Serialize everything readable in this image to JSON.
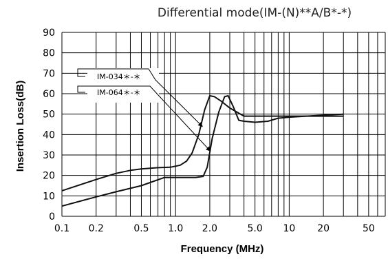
{
  "chart_data": {
    "type": "line",
    "title": "Differential mode(IM-(N)**A/B*-*)",
    "xlabel": "Frequency (MHz)",
    "ylabel": "Insertion Loss(dB)",
    "x_scale": "log",
    "xlim": [
      0.1,
      70
    ],
    "ylim": [
      0,
      90
    ],
    "grid": true,
    "x_ticks": [
      0.1,
      0.2,
      0.5,
      1.0,
      2.0,
      5.0,
      10,
      20,
      50
    ],
    "x_tick_labels": [
      "0.1",
      "0.2",
      "0.5",
      "1.0",
      "2.0",
      "5.0",
      "10",
      "20",
      "50"
    ],
    "y_ticks": [
      0,
      10,
      20,
      30,
      40,
      50,
      60,
      70,
      80,
      90
    ],
    "y_tick_labels": [
      "0",
      "10",
      "20",
      "30",
      "40",
      "50",
      "60",
      "70",
      "80",
      "90"
    ],
    "series": [
      {
        "name": "IM-034＊-＊",
        "x": [
          0.1,
          0.2,
          0.3,
          0.4,
          0.5,
          0.7,
          0.9,
          1.1,
          1.25,
          1.4,
          1.6,
          1.8,
          2.0,
          2.2,
          2.5,
          3.0,
          4.0,
          5.0,
          7.0,
          10,
          15,
          30
        ],
        "y": [
          12.5,
          18,
          21,
          22.5,
          23.2,
          23.8,
          24,
          25,
          27,
          31,
          40,
          52,
          59,
          58.5,
          56.5,
          53,
          49,
          49,
          49,
          49,
          49,
          49
        ]
      },
      {
        "name": "IM-064＊-＊",
        "x": [
          0.1,
          0.2,
          0.3,
          0.5,
          0.8,
          1.0,
          1.5,
          1.75,
          1.9,
          2.1,
          2.4,
          2.7,
          2.9,
          3.2,
          3.6,
          4.0,
          5.0,
          6.5,
          8.0,
          10,
          20,
          30
        ],
        "y": [
          5,
          9.5,
          12,
          15,
          19,
          19,
          19,
          19.5,
          24,
          38,
          51,
          58.5,
          59,
          54,
          47,
          46.5,
          46,
          46.5,
          48,
          48.5,
          49.5,
          50
        ]
      }
    ],
    "legend": {
      "placement": "top-left callout",
      "entries": [
        "IM-034＊-＊",
        "IM-064＊-＊"
      ]
    },
    "colors": {
      "lines": "#111111",
      "grid": "#000000",
      "background": "#ffffff"
    }
  }
}
